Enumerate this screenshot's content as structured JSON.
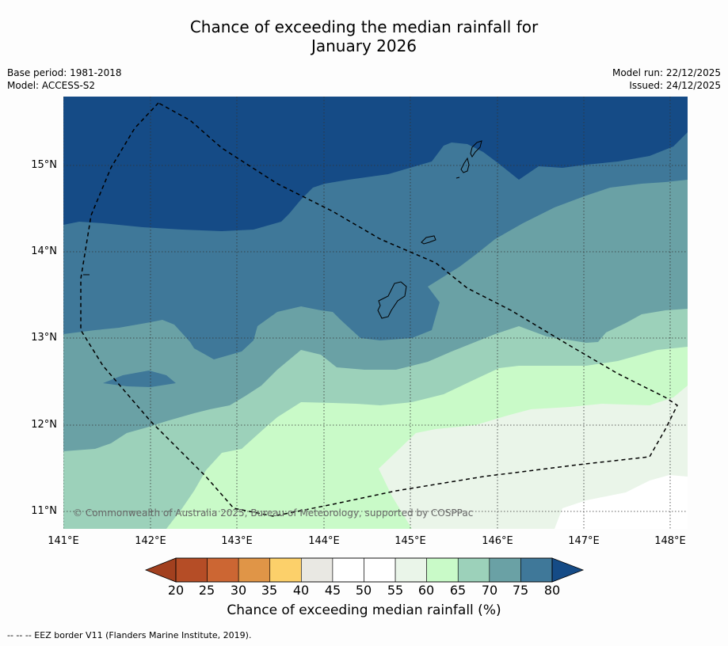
{
  "title": {
    "line1": "Chance of exceeding the median rainfall for",
    "line2": "January 2026"
  },
  "meta": {
    "base_period": "Base period: 1981-2018",
    "model": "Model: ACCESS-S2",
    "model_run": "Model run: 22/12/2025",
    "issued": "Issued: 24/12/2025"
  },
  "map": {
    "copyright": "© Commonwealth of Australia 2025, Bureau of Meteorology, supported by COSPPac",
    "lat_labels": [
      "15°N",
      "14°N",
      "13°N",
      "12°N",
      "11°N"
    ],
    "lon_labels": [
      "141°E",
      "142°E",
      "143°E",
      "144°E",
      "145°E",
      "146°E",
      "147°E",
      "148°E"
    ],
    "colors": {
      "over80": "#154b86",
      "c75_80": "#3f7899",
      "c70_75": "#6aa1a5",
      "c65_70": "#9cd1ba",
      "c60_65": "#c9fac8",
      "c55_60": "#eaf5e9",
      "c50_55": "#ffffff"
    }
  },
  "colorbar": {
    "ticks": [
      "20",
      "25",
      "30",
      "35",
      "40",
      "45",
      "50",
      "55",
      "60",
      "65",
      "70",
      "75",
      "80"
    ],
    "colors": [
      "#a2401f",
      "#b54d26",
      "#cc6633",
      "#e09547",
      "#fcd06a",
      "#e9e8e3",
      "#ffffff",
      "#ffffff",
      "#eaf5e9",
      "#c9fac8",
      "#9cd1ba",
      "#6aa1a5",
      "#3f7899",
      "#154b86"
    ],
    "label": "Chance of exceeding median rainfall (%)"
  },
  "legend": {
    "eez": "--  --  -- EEZ border V11 (Flanders Marine Institute, 2019)."
  }
}
